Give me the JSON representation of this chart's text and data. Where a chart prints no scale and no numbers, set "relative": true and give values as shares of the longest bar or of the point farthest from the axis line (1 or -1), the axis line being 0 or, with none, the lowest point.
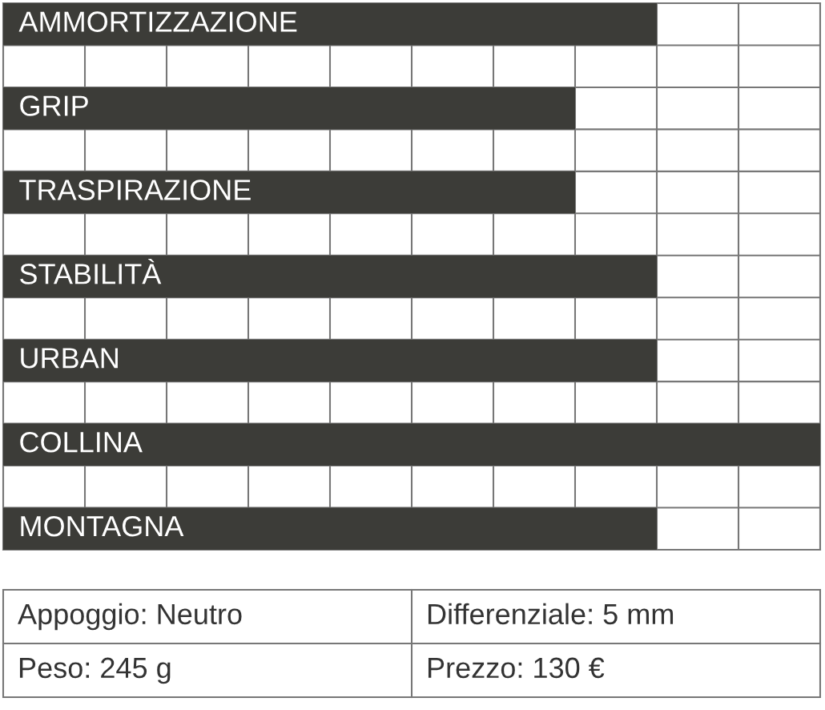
{
  "chart_data": {
    "type": "bar",
    "orientation": "horizontal",
    "relative": true,
    "categories": [
      "AMMORTIZZAZIONE",
      "GRIP",
      "TRASPIRAZIONE",
      "STABILITÀ",
      "URBAN",
      "COLLINA",
      "MONTAGNA"
    ],
    "values": [
      0.8,
      0.7,
      0.7,
      0.8,
      0.8,
      1,
      0.8
    ],
    "color": "#3c3c38",
    "grid": true,
    "annotations": [
      "Appoggio: Neutro",
      "Differenziale: 5 mm",
      "Peso: 245 g",
      "Prezzo: 130 €"
    ]
  }
}
